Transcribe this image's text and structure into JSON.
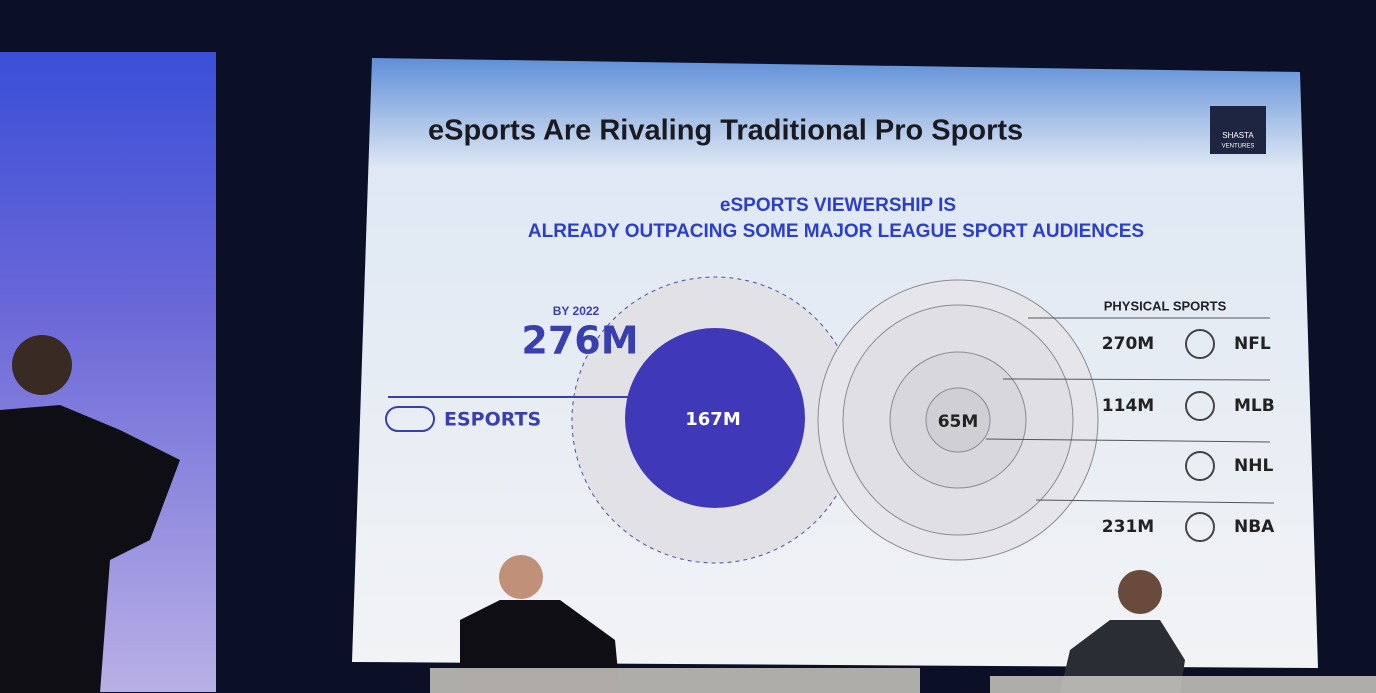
{
  "slide": {
    "title": "eSports Are Rivaling Traditional Pro Sports",
    "logo": [
      "SHASTA",
      "VENTURES"
    ],
    "subtitle": [
      "eSPORTS VIEWERSHIP IS",
      "ALREADY OUTPACING SOME MAJOR LEAGUE SPORT AUDIENCES"
    ],
    "esports": {
      "projection_label": "BY 2022",
      "projection": "276M",
      "label": "ESPORTS",
      "current": "167M"
    },
    "physical": {
      "heading": "PHYSICAL SPORTS",
      "center": "65M",
      "rows": [
        {
          "value": "270M",
          "label": "NFL"
        },
        {
          "value": "114M",
          "label": "MLB"
        },
        {
          "label": "NHL"
        },
        {
          "value": "231M",
          "label": "NBA"
        }
      ]
    }
  }
}
